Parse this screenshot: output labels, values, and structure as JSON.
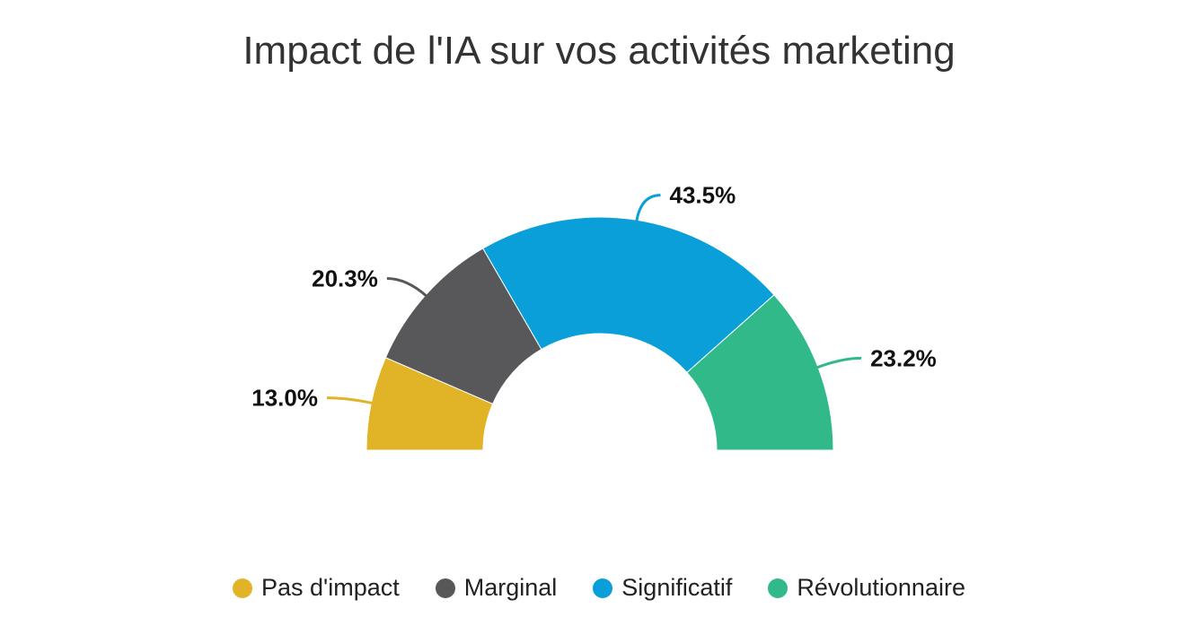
{
  "chart_data": {
    "type": "pie",
    "subtype": "semi-donut",
    "title": "Impact de l'IA sur vos activités marketing",
    "categories": [
      "Pas d'impact",
      "Marginal",
      "Significatif",
      "Révolutionnaire"
    ],
    "values": [
      13.0,
      20.3,
      43.5,
      23.2
    ],
    "labels": [
      "13.0%",
      "20.3%",
      "43.5%",
      "23.2%"
    ],
    "colors": [
      "#e1b427",
      "#58585a",
      "#0b9fda",
      "#32b98a"
    ],
    "legend_position": "bottom-center"
  }
}
